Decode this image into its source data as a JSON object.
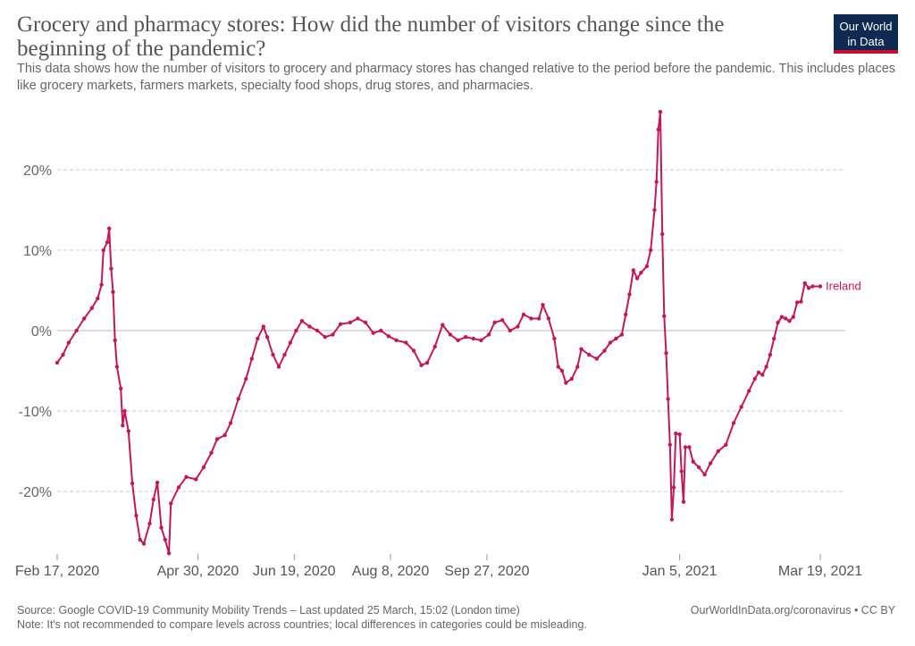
{
  "title": "Grocery and pharmacy stores: How did the number of visitors change since the beginning of the pandemic?",
  "subtitle": "This data shows how the number of visitors to grocery and pharmacy stores has changed relative to the period before the pandemic. This includes places like grocery markets, farmers markets, specialty food shops, drug stores, and pharmacies.",
  "logo": {
    "line1": "Our World",
    "line2": "in Data"
  },
  "footer": {
    "source": "Source: Google COVID-19 Community Mobility Trends – Last updated 25 March, 15:02 (London time)",
    "note": "Note: It's not recommended to compare levels across countries; local differences in categories could be misleading.",
    "right": "OurWorldInData.org/coronavirus • CC BY"
  },
  "colors": {
    "series": "#c2185b",
    "grid": "#cccccc",
    "axis": "#999999"
  },
  "chart_data": {
    "type": "line",
    "title": "Grocery and pharmacy stores: How did the number of visitors change since the beginning of the pandemic?",
    "x_start": "2020-02-17",
    "x_end": "2021-03-19",
    "xticks": [
      "Feb 17, 2020",
      "Apr 30, 2020",
      "Jun 19, 2020",
      "Aug 8, 2020",
      "Sep 27, 2020",
      "Jan 5, 2021",
      "Mar 19, 2021"
    ],
    "ylim": [
      -28,
      27
    ],
    "yticks": [
      -20,
      -10,
      0,
      10,
      20
    ],
    "ytick_labels": [
      "-20%",
      "-10%",
      "0%",
      "10%",
      "20%"
    ],
    "grid": true,
    "series": [
      {
        "name": "Ireland",
        "points": [
          [
            "2020-02-17",
            -4
          ],
          [
            "2020-02-20",
            -3
          ],
          [
            "2020-02-23",
            -1.5
          ],
          [
            "2020-02-27",
            0
          ],
          [
            "2020-03-02",
            1.5
          ],
          [
            "2020-03-06",
            2.8
          ],
          [
            "2020-03-09",
            4
          ],
          [
            "2020-03-11",
            5.7
          ],
          [
            "2020-03-12",
            10
          ],
          [
            "2020-03-14",
            11
          ],
          [
            "2020-03-15",
            12.7
          ],
          [
            "2020-03-16",
            7.7
          ],
          [
            "2020-03-17",
            4.8
          ],
          [
            "2020-03-18",
            -1.2
          ],
          [
            "2020-03-19",
            -4.5
          ],
          [
            "2020-03-21",
            -7.2
          ],
          [
            "2020-03-22",
            -11.8
          ],
          [
            "2020-03-23",
            -10
          ],
          [
            "2020-03-25",
            -12.5
          ],
          [
            "2020-03-27",
            -19
          ],
          [
            "2020-03-29",
            -23
          ],
          [
            "2020-03-31",
            -26
          ],
          [
            "2020-04-02",
            -26.5
          ],
          [
            "2020-04-05",
            -24
          ],
          [
            "2020-04-07",
            -21
          ],
          [
            "2020-04-09",
            -18.9
          ],
          [
            "2020-04-11",
            -24.5
          ],
          [
            "2020-04-13",
            -26
          ],
          [
            "2020-04-15",
            -27.7
          ],
          [
            "2020-04-16",
            -21.5
          ],
          [
            "2020-04-20",
            -19.5
          ],
          [
            "2020-04-24",
            -18.2
          ],
          [
            "2020-04-29",
            -18.5
          ],
          [
            "2020-05-03",
            -17
          ],
          [
            "2020-05-07",
            -15.2
          ],
          [
            "2020-05-10",
            -13.5
          ],
          [
            "2020-05-14",
            -13
          ],
          [
            "2020-05-17",
            -11.5
          ],
          [
            "2020-05-21",
            -8.5
          ],
          [
            "2020-05-25",
            -6
          ],
          [
            "2020-05-28",
            -3.5
          ],
          [
            "2020-05-31",
            -1
          ],
          [
            "2020-06-03",
            0.5
          ],
          [
            "2020-06-05",
            -0.8
          ],
          [
            "2020-06-08",
            -3
          ],
          [
            "2020-06-11",
            -4.5
          ],
          [
            "2020-06-14",
            -3
          ],
          [
            "2020-06-17",
            -1.5
          ],
          [
            "2020-06-20",
            0
          ],
          [
            "2020-06-23",
            1.2
          ],
          [
            "2020-06-27",
            0.5
          ],
          [
            "2020-07-01",
            0
          ],
          [
            "2020-07-05",
            -0.8
          ],
          [
            "2020-07-09",
            -0.5
          ],
          [
            "2020-07-13",
            0.8
          ],
          [
            "2020-07-18",
            1
          ],
          [
            "2020-07-22",
            1.5
          ],
          [
            "2020-07-26",
            1
          ],
          [
            "2020-07-30",
            -0.3
          ],
          [
            "2020-08-03",
            0
          ],
          [
            "2020-08-07",
            -0.7
          ],
          [
            "2020-08-11",
            -1.2
          ],
          [
            "2020-08-16",
            -1.5
          ],
          [
            "2020-08-20",
            -2.5
          ],
          [
            "2020-08-24",
            -4.3
          ],
          [
            "2020-08-27",
            -4
          ],
          [
            "2020-08-31",
            -2
          ],
          [
            "2020-09-04",
            0.7
          ],
          [
            "2020-09-08",
            -0.5
          ],
          [
            "2020-09-12",
            -1.2
          ],
          [
            "2020-09-16",
            -0.8
          ],
          [
            "2020-09-20",
            -1
          ],
          [
            "2020-09-24",
            -1.2
          ],
          [
            "2020-09-28",
            -0.5
          ],
          [
            "2020-10-01",
            1
          ],
          [
            "2020-10-05",
            1.3
          ],
          [
            "2020-10-09",
            0
          ],
          [
            "2020-10-13",
            0.5
          ],
          [
            "2020-10-16",
            2
          ],
          [
            "2020-10-20",
            1.5
          ],
          [
            "2020-10-24",
            1.5
          ],
          [
            "2020-10-26",
            3.2
          ],
          [
            "2020-10-29",
            1.5
          ],
          [
            "2020-11-01",
            -1
          ],
          [
            "2020-11-03",
            -4.5
          ],
          [
            "2020-11-05",
            -5
          ],
          [
            "2020-11-07",
            -6.5
          ],
          [
            "2020-11-10",
            -6
          ],
          [
            "2020-11-13",
            -4.5
          ],
          [
            "2020-11-15",
            -2.3
          ],
          [
            "2020-11-19",
            -3
          ],
          [
            "2020-11-23",
            -3.5
          ],
          [
            "2020-11-27",
            -2.5
          ],
          [
            "2020-11-30",
            -1.5
          ],
          [
            "2020-12-03",
            -1
          ],
          [
            "2020-12-06",
            -0.5
          ],
          [
            "2020-12-08",
            2
          ],
          [
            "2020-12-10",
            4.5
          ],
          [
            "2020-12-12",
            7.5
          ],
          [
            "2020-12-14",
            6.5
          ],
          [
            "2020-12-16",
            7.2
          ],
          [
            "2020-12-19",
            8
          ],
          [
            "2020-12-21",
            10
          ],
          [
            "2020-12-23",
            15
          ],
          [
            "2020-12-24",
            18.5
          ],
          [
            "2020-12-25",
            25
          ],
          [
            "2020-12-26",
            27.2
          ],
          [
            "2020-12-27",
            12
          ],
          [
            "2020-12-28",
            1.8
          ],
          [
            "2020-12-29",
            -2.8
          ],
          [
            "2020-12-30",
            -8.5
          ],
          [
            "2020-12-31",
            -14.2
          ],
          [
            "2021-01-01",
            -23.5
          ],
          [
            "2021-01-02",
            -19.5
          ],
          [
            "2021-01-03",
            -12.8
          ],
          [
            "2021-01-05",
            -12.9
          ],
          [
            "2021-01-06",
            -17.5
          ],
          [
            "2021-01-07",
            -21.3
          ],
          [
            "2021-01-08",
            -14.5
          ],
          [
            "2021-01-10",
            -14.5
          ],
          [
            "2021-01-12",
            -16.3
          ],
          [
            "2021-01-15",
            -17
          ],
          [
            "2021-01-18",
            -17.9
          ],
          [
            "2021-01-21",
            -16.5
          ],
          [
            "2021-01-25",
            -15
          ],
          [
            "2021-01-29",
            -14.2
          ],
          [
            "2021-02-02",
            -11.5
          ],
          [
            "2021-02-06",
            -9.5
          ],
          [
            "2021-02-10",
            -7.5
          ],
          [
            "2021-02-13",
            -6
          ],
          [
            "2021-02-15",
            -5.2
          ],
          [
            "2021-02-17",
            -5.5
          ],
          [
            "2021-02-19",
            -4.5
          ],
          [
            "2021-02-21",
            -3
          ],
          [
            "2021-02-23",
            -1
          ],
          [
            "2021-02-25",
            1
          ],
          [
            "2021-02-27",
            1.7
          ],
          [
            "2021-03-01",
            1.5
          ],
          [
            "2021-03-03",
            1.2
          ],
          [
            "2021-03-05",
            1.7
          ],
          [
            "2021-03-07",
            3.5
          ],
          [
            "2021-03-09",
            3.6
          ],
          [
            "2021-03-11",
            5.9
          ],
          [
            "2021-03-13",
            5.3
          ],
          [
            "2021-03-15",
            5.5
          ],
          [
            "2021-03-19",
            5.5
          ]
        ]
      }
    ]
  }
}
